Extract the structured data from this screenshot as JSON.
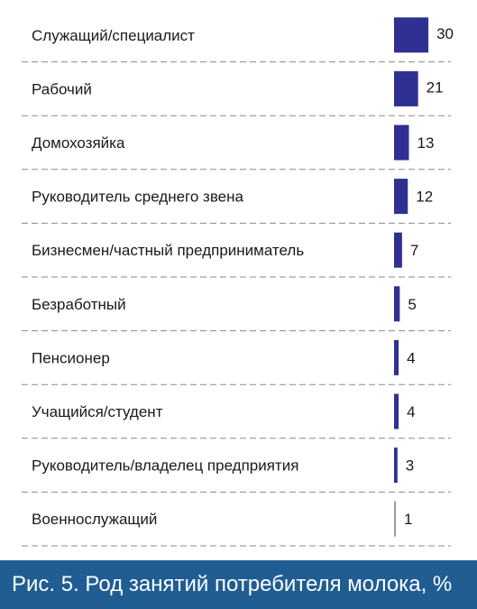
{
  "chart_data": {
    "type": "bar",
    "orientation": "horizontal",
    "categories": [
      "Служащий/специалист",
      "Рабочий",
      "Домохозяйка",
      "Руководитель среднего звена",
      "Бизнесмен/частный предприниматель",
      "Безработный",
      "Пенсионер",
      "Учащийся/студент",
      "Руководитель/владелец предприятия",
      "Военнослужащий"
    ],
    "values": [
      30,
      21,
      13,
      12,
      7,
      5,
      4,
      4,
      3,
      1
    ],
    "bar_color": "#2e3192",
    "grid": false,
    "legend": "none"
  },
  "caption": "Рис. 5. Род занятий потребителя молока, %"
}
